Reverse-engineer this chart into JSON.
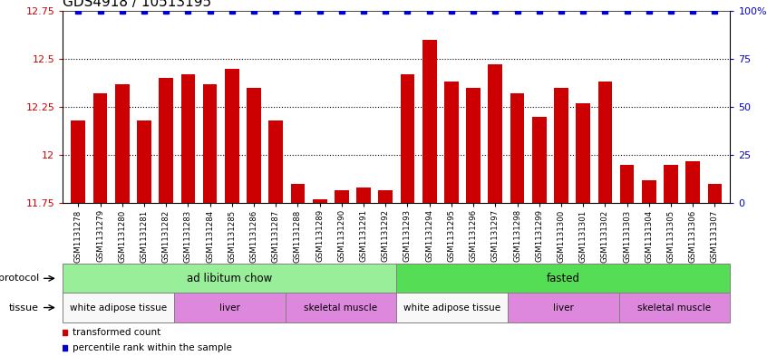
{
  "title": "GDS4918 / 10513195",
  "samples": [
    "GSM1131278",
    "GSM1131279",
    "GSM1131280",
    "GSM1131281",
    "GSM1131282",
    "GSM1131283",
    "GSM1131284",
    "GSM1131285",
    "GSM1131286",
    "GSM1131287",
    "GSM1131288",
    "GSM1131289",
    "GSM1131290",
    "GSM1131291",
    "GSM1131292",
    "GSM1131293",
    "GSM1131294",
    "GSM1131295",
    "GSM1131296",
    "GSM1131297",
    "GSM1131298",
    "GSM1131299",
    "GSM1131300",
    "GSM1131301",
    "GSM1131302",
    "GSM1131303",
    "GSM1131304",
    "GSM1131305",
    "GSM1131306",
    "GSM1131307"
  ],
  "values": [
    12.18,
    12.32,
    12.37,
    12.18,
    12.4,
    12.42,
    12.37,
    12.45,
    12.35,
    12.18,
    11.85,
    11.77,
    11.82,
    11.83,
    11.82,
    12.42,
    12.6,
    12.38,
    12.35,
    12.47,
    12.32,
    12.2,
    12.35,
    12.27,
    12.38,
    11.95,
    11.87,
    11.95,
    11.97,
    11.85
  ],
  "bar_color": "#cc0000",
  "percentile_color": "#0000cc",
  "ylim_left": [
    11.75,
    12.75
  ],
  "ylim_right": [
    0,
    100
  ],
  "yticks_left": [
    11.75,
    12.0,
    12.25,
    12.5,
    12.75
  ],
  "yticks_left_labels": [
    "11.75",
    "12",
    "12.25",
    "12.5",
    "12.75"
  ],
  "yticks_right": [
    0,
    25,
    50,
    75,
    100
  ],
  "yticks_right_labels": [
    "0",
    "25",
    "50",
    "75",
    "100%"
  ],
  "left_axis_color": "#cc0000",
  "right_axis_color": "#0000cc",
  "protocol_labels": [
    {
      "label": "ad libitum chow",
      "start": 0,
      "end": 15,
      "color": "#99ee99"
    },
    {
      "label": "fasted",
      "start": 15,
      "end": 30,
      "color": "#55dd55"
    }
  ],
  "tissue_labels": [
    {
      "label": "white adipose tissue",
      "start": 0,
      "end": 5,
      "color": "#f8f8f8"
    },
    {
      "label": "liver",
      "start": 5,
      "end": 10,
      "color": "#dd88dd"
    },
    {
      "label": "skeletal muscle",
      "start": 10,
      "end": 15,
      "color": "#dd88dd"
    },
    {
      "label": "white adipose tissue",
      "start": 15,
      "end": 20,
      "color": "#f8f8f8"
    },
    {
      "label": "liver",
      "start": 20,
      "end": 25,
      "color": "#dd88dd"
    },
    {
      "label": "skeletal muscle",
      "start": 25,
      "end": 30,
      "color": "#dd88dd"
    }
  ],
  "legend_items": [
    {
      "label": "transformed count",
      "color": "#cc0000"
    },
    {
      "label": "percentile rank within the sample",
      "color": "#0000cc"
    }
  ],
  "bar_width": 0.65,
  "tick_fontsize": 8,
  "label_fontsize": 8,
  "title_fontsize": 11
}
